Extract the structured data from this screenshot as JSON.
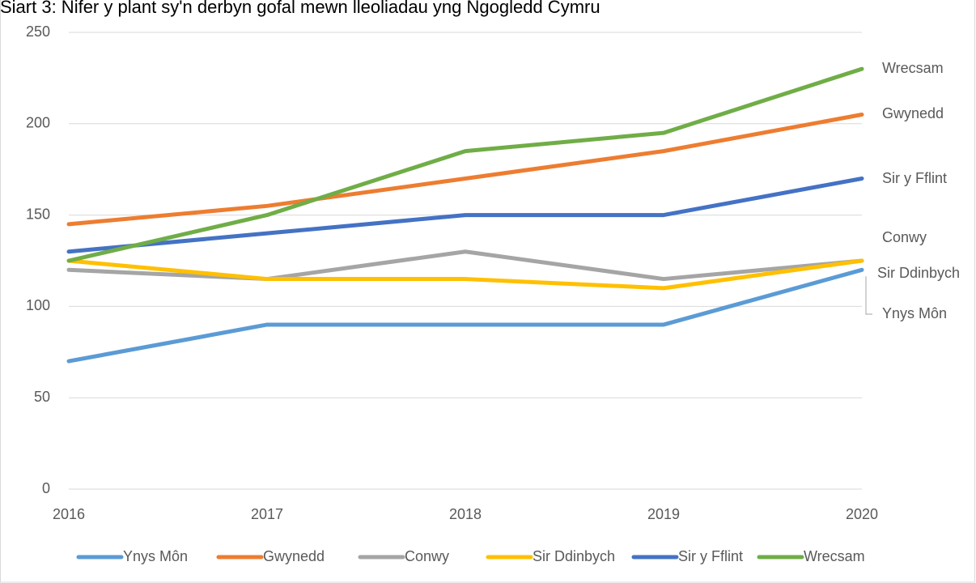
{
  "chart_data": {
    "type": "line",
    "title": "Siart 3: Nifer y plant sy'n derbyn gofal mewn lleoliadau yng Ngogledd Cymru",
    "categories": [
      "2016",
      "2017",
      "2018",
      "2019",
      "2020"
    ],
    "series": [
      {
        "name": "Ynys Môn",
        "color": "#5b9bd5",
        "values": [
          70,
          90,
          90,
          90,
          120
        ]
      },
      {
        "name": "Gwynedd",
        "color": "#ed7d31",
        "values": [
          145,
          155,
          170,
          185,
          205
        ]
      },
      {
        "name": "Conwy",
        "color": "#a5a5a5",
        "values": [
          120,
          115,
          130,
          115,
          125
        ]
      },
      {
        "name": "Sir Ddinbych",
        "color": "#ffc000",
        "values": [
          125,
          115,
          115,
          110,
          125
        ]
      },
      {
        "name": "Sir y Fflint",
        "color": "#4472c4",
        "values": [
          130,
          140,
          150,
          150,
          170
        ]
      },
      {
        "name": "Wrecsam",
        "color": "#70ad47",
        "values": [
          125,
          150,
          185,
          195,
          230
        ]
      }
    ],
    "ylim": [
      0,
      250
    ],
    "yticks": [
      0,
      50,
      100,
      150,
      200,
      250
    ],
    "grid": true,
    "legend": "bottom"
  }
}
